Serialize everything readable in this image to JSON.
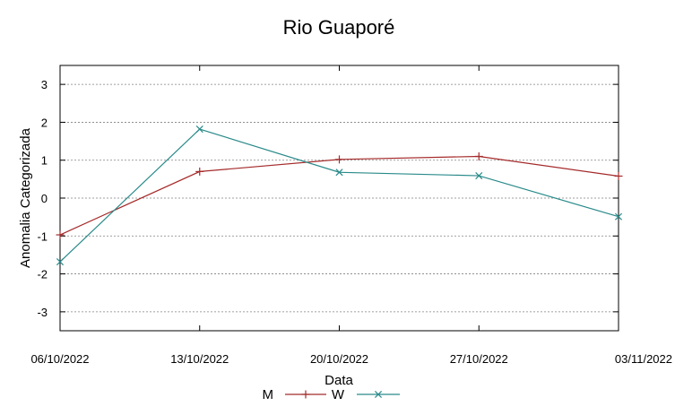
{
  "chart_data": {
    "type": "line",
    "title": "Rio Guaporé",
    "xlabel": "Data",
    "ylabel": "Anomalia Categorizada",
    "categories": [
      "06/10/2022",
      "13/10/2022",
      "20/10/2022",
      "27/10/2022",
      "03/11/2022"
    ],
    "ylim": [
      -3.5,
      3.5
    ],
    "yticks": [
      "3",
      "2",
      "1",
      "0",
      "-1",
      "-2",
      "-3"
    ],
    "grid": true,
    "legend": "bottom-center",
    "series": [
      {
        "name": "M",
        "marker": "plus",
        "color": "#a52a2a",
        "values": [
          -0.97,
          0.7,
          1.02,
          1.1,
          0.58
        ]
      },
      {
        "name": "W",
        "marker": "x",
        "color": "#2a8a8a",
        "values": [
          -1.68,
          1.82,
          0.68,
          0.59,
          -0.49
        ]
      }
    ]
  }
}
